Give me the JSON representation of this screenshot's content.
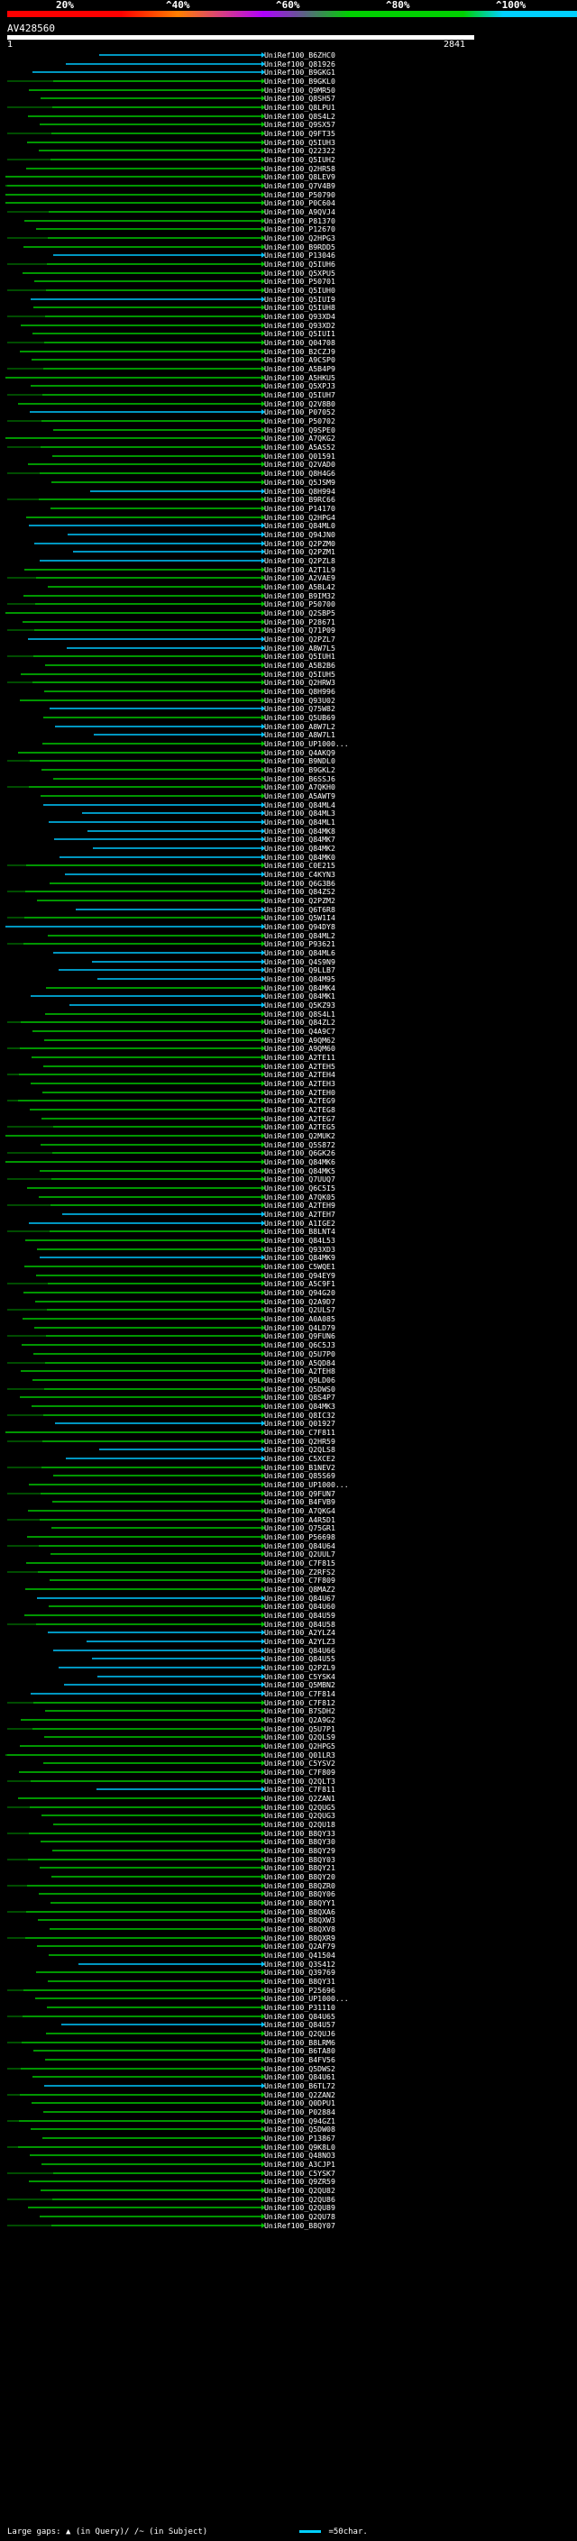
{
  "scale_labels": [
    "20%",
    "^40%",
    "^60%",
    "^80%",
    "^100%"
  ],
  "colors": {
    "red": "#ff0000",
    "orange": "#ff8000",
    "purple": "#b000ff",
    "green": "#00d000",
    "cyan": "#00d0ff",
    "hit_green": "#00c800",
    "hit_cyan": "#00c8ff",
    "dark_green": "#006400"
  },
  "query": {
    "id": "AV428560",
    "start": "1",
    "end": "2841"
  },
  "hits": [
    "UniRef100_B6ZHC0",
    "UniRef100_Q81926",
    "UniRef100_B9GKG1",
    "UniRef100_B9GKL0",
    "UniRef100_Q9MR50",
    "UniRef100_Q8SH57",
    "UniRef100_Q8LPU1",
    "UniRef100_Q8S4L2",
    "UniRef100_Q9SX57",
    "UniRef100_Q9FT35",
    "UniRef100_Q5IUH3",
    "UniRef100_Q22322",
    "UniRef100_Q5IUH2",
    "UniRef100_Q2HR58",
    "UniRef100_Q8LEV9",
    "UniRef100_Q7V4B9",
    "UniRef100_P50790",
    "UniRef100_P0C604",
    "UniRef100_A9QVJ4",
    "UniRef100_P81370",
    "UniRef100_P12670",
    "UniRef100_Q2HPG3",
    "UniRef100_B9RDD5",
    "UniRef100_P13046",
    "UniRef100_Q5IUH6",
    "UniRef100_Q5XPU5",
    "UniRef100_P50701",
    "UniRef100_Q5IUH0",
    "UniRef100_Q5IUI9",
    "UniRef100_Q5IUH8",
    "UniRef100_Q93XD4",
    "UniRef100_Q93XD2",
    "UniRef100_Q5IUI1",
    "UniRef100_Q04708",
    "UniRef100_B2CZJ9",
    "UniRef100_A9CSP0",
    "UniRef100_A5B4P9",
    "UniRef100_A5HKU5",
    "UniRef100_Q5XPJ3",
    "UniRef100_Q5IUH7",
    "UniRef100_Q2V8B0",
    "UniRef100_P07052",
    "UniRef100_P50702",
    "UniRef100_Q9SPE0",
    "UniRef100_A7QKG2",
    "UniRef100_A5AS52",
    "UniRef100_Q01591",
    "UniRef100_Q2VAD0",
    "UniRef100_Q8H4G6",
    "UniRef100_Q5JSM9",
    "UniRef100_Q8H994",
    "UniRef100_B9RC66",
    "UniRef100_P14170",
    "UniRef100_Q2HPG4",
    "UniRef100_Q84ML0",
    "UniRef100_Q94JN0",
    "UniRef100_Q2PZM0",
    "UniRef100_Q2PZM1",
    "UniRef100_Q2PZL8",
    "UniRef100_A2T1L9",
    "UniRef100_A2VAE9",
    "UniRef100_A5BL42",
    "UniRef100_B9IM32",
    "UniRef100_P50700",
    "UniRef100_Q2SBP5",
    "UniRef100_P28671",
    "UniRef100_Q71P09",
    "UniRef100_Q2PZL7",
    "UniRef100_A8W7L5",
    "UniRef100_Q5IUH1",
    "UniRef100_A5B2B6",
    "UniRef100_Q5IUH5",
    "UniRef100_Q2HRW3",
    "UniRef100_Q8H996",
    "UniRef100_Q93U02",
    "UniRef100_Q75W82",
    "UniRef100_Q5UB69",
    "UniRef100_A8W7L2",
    "UniRef100_A8W7L1",
    "UniRef100_UP1000...",
    "UniRef100_Q4AKQ9",
    "UniRef100_B9NDL0",
    "UniRef100_B9GKL2",
    "UniRef100_B6SSJ6",
    "UniRef100_A7QKH0",
    "UniRef100_A5AWT9",
    "UniRef100_Q84ML4",
    "UniRef100_Q84ML3",
    "UniRef100_Q84ML1",
    "UniRef100_Q84MK8",
    "UniRef100_Q84MK7",
    "UniRef100_Q84MK2",
    "UniRef100_Q84MK0",
    "UniRef100_C0E215",
    "UniRef100_C4KYN3",
    "UniRef100_Q6G3B6",
    "UniRef100_Q84ZS2",
    "UniRef100_Q2PZM2",
    "UniRef100_Q6T6R8",
    "UniRef100_Q5W1I4",
    "UniRef100_Q94DY8",
    "UniRef100_Q84ML2",
    "UniRef100_P93621",
    "UniRef100_Q84ML6",
    "UniRef100_Q4S9N9",
    "UniRef100_Q9LLB7",
    "UniRef100_Q84M95",
    "UniRef100_Q84MK4",
    "UniRef100_Q84MK1",
    "UniRef100_Q5KZ93",
    "UniRef100_Q8S4L1",
    "UniRef100_Q84ZL2",
    "UniRef100_Q4A9C7",
    "UniRef100_A9QM62",
    "UniRef100_A9QM60",
    "UniRef100_A2TE11",
    "UniRef100_A2TEH5",
    "UniRef100_A2TEH4",
    "UniRef100_A2TEH3",
    "UniRef100_A2TEH0",
    "UniRef100_A2TEG9",
    "UniRef100_A2TEG8",
    "UniRef100_A2TEG7",
    "UniRef100_A2TEG5",
    "UniRef100_Q2MUK2",
    "UniRef100_Q5S872",
    "UniRef100_Q6GK26",
    "UniRef100_Q84MK6",
    "UniRef100_Q84MK5",
    "UniRef100_Q7UUQ7",
    "UniRef100_Q6C5I5",
    "UniRef100_A7QK05",
    "UniRef100_A2TEH9",
    "UniRef100_A2TEH7",
    "UniRef100_A1IGE2",
    "UniRef100_B8LNT4",
    "UniRef100_Q84L53",
    "UniRef100_Q93XD3",
    "UniRef100_Q84MK9",
    "UniRef100_C5WQE1",
    "UniRef100_Q94EY9",
    "UniRef100_A5C9F1",
    "UniRef100_Q94G20",
    "UniRef100_Q2A9D7",
    "UniRef100_Q2ULS7",
    "UniRef100_A0A085",
    "UniRef100_Q4LD79",
    "UniRef100_Q9FUN6",
    "UniRef100_Q6C5J3",
    "UniRef100_Q5U7P0",
    "UniRef100_A5QD84",
    "UniRef100_A2TEH8",
    "UniRef100_Q9LD06",
    "UniRef100_Q5DWS0",
    "UniRef100_Q8S4P7",
    "UniRef100_Q84MK3",
    "UniRef100_Q8IC32",
    "UniRef100_Q01927",
    "UniRef100_C7F811",
    "UniRef100_Q2HR59",
    "UniRef100_Q2QLS8",
    "UniRef100_C5XCE2",
    "UniRef100_B1NEV2",
    "UniRef100_Q85S69",
    "UniRef100_UP1000...",
    "UniRef100_Q9FUN7",
    "UniRef100_B4FVB9",
    "UniRef100_A7QKG4",
    "UniRef100_A4R5D1",
    "UniRef100_Q75GR1",
    "UniRef100_P56698",
    "UniRef100_Q84U64",
    "UniRef100_Q2UUL7",
    "UniRef100_C7F815",
    "UniRef100_Z2RFS2",
    "UniRef100_C7F809",
    "UniRef100_Q8MAZ2",
    "UniRef100_Q84U67",
    "UniRef100_Q84U60",
    "UniRef100_Q84U59",
    "UniRef100_Q84U58",
    "UniRef100_A2YLZ4",
    "UniRef100_A2YLZ3",
    "UniRef100_Q84U66",
    "UniRef100_Q84U55",
    "UniRef100_Q2PZL9",
    "UniRef100_C5YSK4",
    "UniRef100_Q5MBN2",
    "UniRef100_C7F814",
    "UniRef100_C7F812",
    "UniRef100_B7SDH2",
    "UniRef100_Q2A9G2",
    "UniRef100_Q5U7P1",
    "UniRef100_Q2QLS9",
    "UniRef100_Q2HPG5",
    "UniRef100_Q01LR3",
    "UniRef100_C5YSV2",
    "UniRef100_C7F809",
    "UniRef100_Q2QLT3",
    "UniRef100_C7F811",
    "UniRef100_Q2ZAN1",
    "UniRef100_Q2QUG5",
    "UniRef100_Q2QUG3",
    "UniRef100_Q2QU18",
    "UniRef100_B8QY33",
    "UniRef100_B8QY30",
    "UniRef100_B8QY29",
    "UniRef100_B8QY03",
    "UniRef100_B8QY21",
    "UniRef100_B8QY20",
    "UniRef100_B8QZR0",
    "UniRef100_B8QY06",
    "UniRef100_B8QYY1",
    "UniRef100_B8QXA6",
    "UniRef100_B8QXW3",
    "UniRef100_B8QXV8",
    "UniRef100_B8QXR9",
    "UniRef100_Q2AF79",
    "UniRef100_Q41504",
    "UniRef100_Q3S412",
    "UniRef100_Q39769",
    "UniRef100_B8QY31",
    "UniRef100_P25696",
    "UniRef100_UP1000...",
    "UniRef100_P31110",
    "UniRef100_Q84U65",
    "UniRef100_Q84U57",
    "UniRef100_Q2QUJ6",
    "UniRef100_B8LRM6",
    "UniRef100_B6TA80",
    "UniRef100_B4FV56",
    "UniRef100_Q5DWS2",
    "UniRef100_Q84U61",
    "UniRef100_B6TL72",
    "UniRef100_Q2ZAN2",
    "UniRef100_Q0DPU1",
    "UniRef100_P02884",
    "UniRef100_Q94GZ1",
    "UniRef100_Q5DW08",
    "UniRef100_P13867",
    "UniRef100_Q9K8L0",
    "UniRef100_Q48NO3",
    "UniRef100_A3CJP1",
    "UniRef100_C5YSK7",
    "UniRef100_Q9ZR59",
    "UniRef100_Q2QU82",
    "UniRef100_Q2QU86",
    "UniRef100_Q2QU89",
    "UniRef100_Q2QU78",
    "UniRef100_B8QY07"
  ],
  "footer": {
    "gaps_label": "Large gaps:",
    "gap_in_query": "(in Query)/",
    "gap_in_subject": "(in Subject)",
    "swatch_caption": "=50char."
  }
}
